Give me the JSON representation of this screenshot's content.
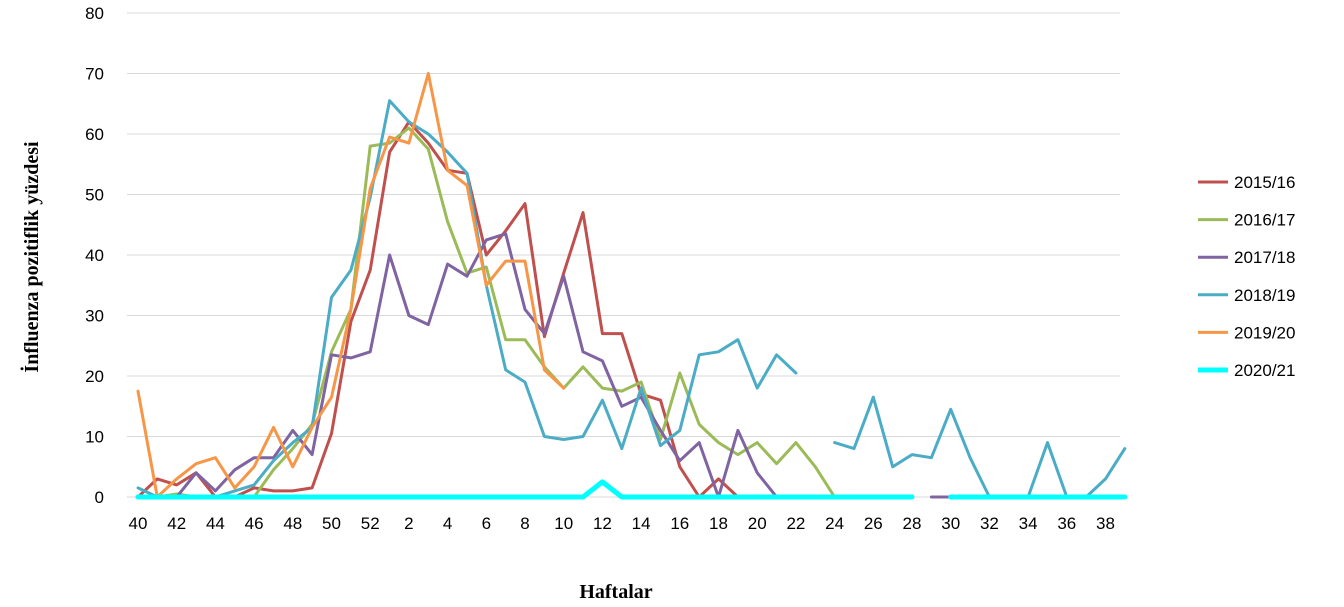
{
  "chart_data": {
    "type": "line",
    "xlabel": "Haftalar",
    "ylabel": "İnfluenza pozitiflik yüzdesi",
    "ylim": [
      0,
      80
    ],
    "yticks": [
      0,
      10,
      20,
      30,
      40,
      50,
      60,
      70,
      80
    ],
    "grid": true,
    "legend_position": "right",
    "categories": [
      "40",
      "41",
      "42",
      "43",
      "44",
      "45",
      "46",
      "47",
      "48",
      "49",
      "50",
      "51",
      "52",
      "1",
      "2",
      "3",
      "4",
      "5",
      "6",
      "7",
      "8",
      "9",
      "10",
      "11",
      "12",
      "13",
      "14",
      "15",
      "16",
      "17",
      "18",
      "19",
      "20",
      "21",
      "22",
      "23",
      "24",
      "25",
      "26",
      "27",
      "28",
      "29",
      "30",
      "31",
      "32",
      "33",
      "34",
      "35",
      "36",
      "37",
      "38",
      "39"
    ],
    "xtick_labels": [
      "40",
      "42",
      "44",
      "46",
      "48",
      "50",
      "52",
      "2",
      "4",
      "6",
      "8",
      "10",
      "12",
      "14",
      "16",
      "18",
      "20",
      "22",
      "24",
      "26",
      "28",
      "30",
      "32",
      "34",
      "36",
      "38"
    ],
    "series": [
      {
        "name": "2015/16",
        "color": "#c0504d",
        "width": 3,
        "values": [
          0,
          3,
          2,
          4,
          0,
          0,
          1.5,
          1,
          1,
          1.5,
          10.5,
          29,
          37.5,
          57,
          62,
          58.5,
          54,
          53.5,
          40,
          44,
          48.5,
          26.5,
          37,
          47,
          27,
          27,
          17,
          16,
          5,
          0,
          3,
          0,
          null,
          null,
          null,
          null,
          null,
          null,
          null,
          null,
          null,
          null,
          null,
          null,
          null,
          null,
          null,
          null,
          null,
          null,
          null,
          null
        ]
      },
      {
        "name": "2016/17",
        "color": "#9bbb59",
        "width": 3,
        "values": [
          0,
          0,
          0.5,
          0,
          null,
          null,
          0,
          4.5,
          8,
          12,
          24,
          31,
          58,
          58.5,
          61,
          57.5,
          45.5,
          37,
          38,
          26,
          26,
          21.5,
          18,
          21.5,
          18,
          17.5,
          19,
          9.5,
          20.5,
          12,
          9,
          7,
          9,
          5.5,
          9,
          5,
          0,
          null,
          null,
          null,
          null,
          null,
          null,
          null,
          null,
          null,
          null,
          null,
          null,
          null,
          null,
          null
        ]
      },
      {
        "name": "2017/18",
        "color": "#8064a2",
        "width": 3,
        "values": [
          0,
          0,
          0,
          4,
          1,
          4.5,
          6.5,
          6.5,
          11,
          7,
          23.5,
          23,
          24,
          40,
          30,
          28.5,
          38.5,
          36.5,
          42.5,
          43.5,
          31,
          27,
          36.5,
          24,
          22.5,
          15,
          16.5,
          11,
          6,
          9,
          0,
          11,
          4,
          0,
          null,
          null,
          null,
          null,
          null,
          null,
          null,
          0,
          0,
          null,
          null,
          null,
          null,
          null,
          null,
          null,
          null,
          null
        ]
      },
      {
        "name": "2018/19",
        "color": "#4bacc6",
        "width": 3,
        "values": [
          1.5,
          0,
          0,
          0,
          0,
          1,
          2,
          6,
          9,
          11.5,
          33,
          37.5,
          49.5,
          65.5,
          62,
          60,
          57,
          53.5,
          35,
          21,
          19,
          10,
          9.5,
          10,
          16,
          8,
          18,
          8.5,
          11,
          23.5,
          24,
          26,
          18,
          23.5,
          20.5,
          null,
          9,
          8,
          16.5,
          5,
          7,
          6.5,
          14.5,
          6.5,
          0,
          0,
          0,
          9,
          0,
          0,
          3,
          8
        ]
      },
      {
        "name": "2019/20",
        "color": "#f79646",
        "width": 3,
        "values": [
          17.5,
          0,
          3,
          5.5,
          6.5,
          1.5,
          5,
          11.5,
          5,
          11.5,
          16.5,
          31,
          51,
          59.5,
          58.5,
          70,
          54,
          51.5,
          35,
          39,
          39,
          21,
          18,
          null,
          null,
          null,
          null,
          null,
          null,
          null,
          null,
          null,
          null,
          null,
          null,
          null,
          null,
          null,
          null,
          null,
          null,
          null,
          null,
          null,
          null,
          null,
          null,
          null,
          null,
          null,
          null,
          null
        ]
      },
      {
        "name": "2020/21",
        "color": "#00ffff",
        "width": 5,
        "values": [
          0,
          0,
          0,
          0,
          0,
          0,
          0,
          0,
          0,
          0,
          0,
          0,
          0,
          0,
          0,
          0,
          0,
          0,
          0,
          0,
          0,
          0,
          0,
          0,
          2.5,
          0,
          0,
          0,
          0,
          0,
          0,
          0,
          0,
          0,
          0,
          0,
          0,
          0,
          0,
          0,
          0,
          null,
          0,
          0,
          0,
          0,
          0,
          0,
          0,
          0,
          0,
          0
        ]
      }
    ]
  }
}
